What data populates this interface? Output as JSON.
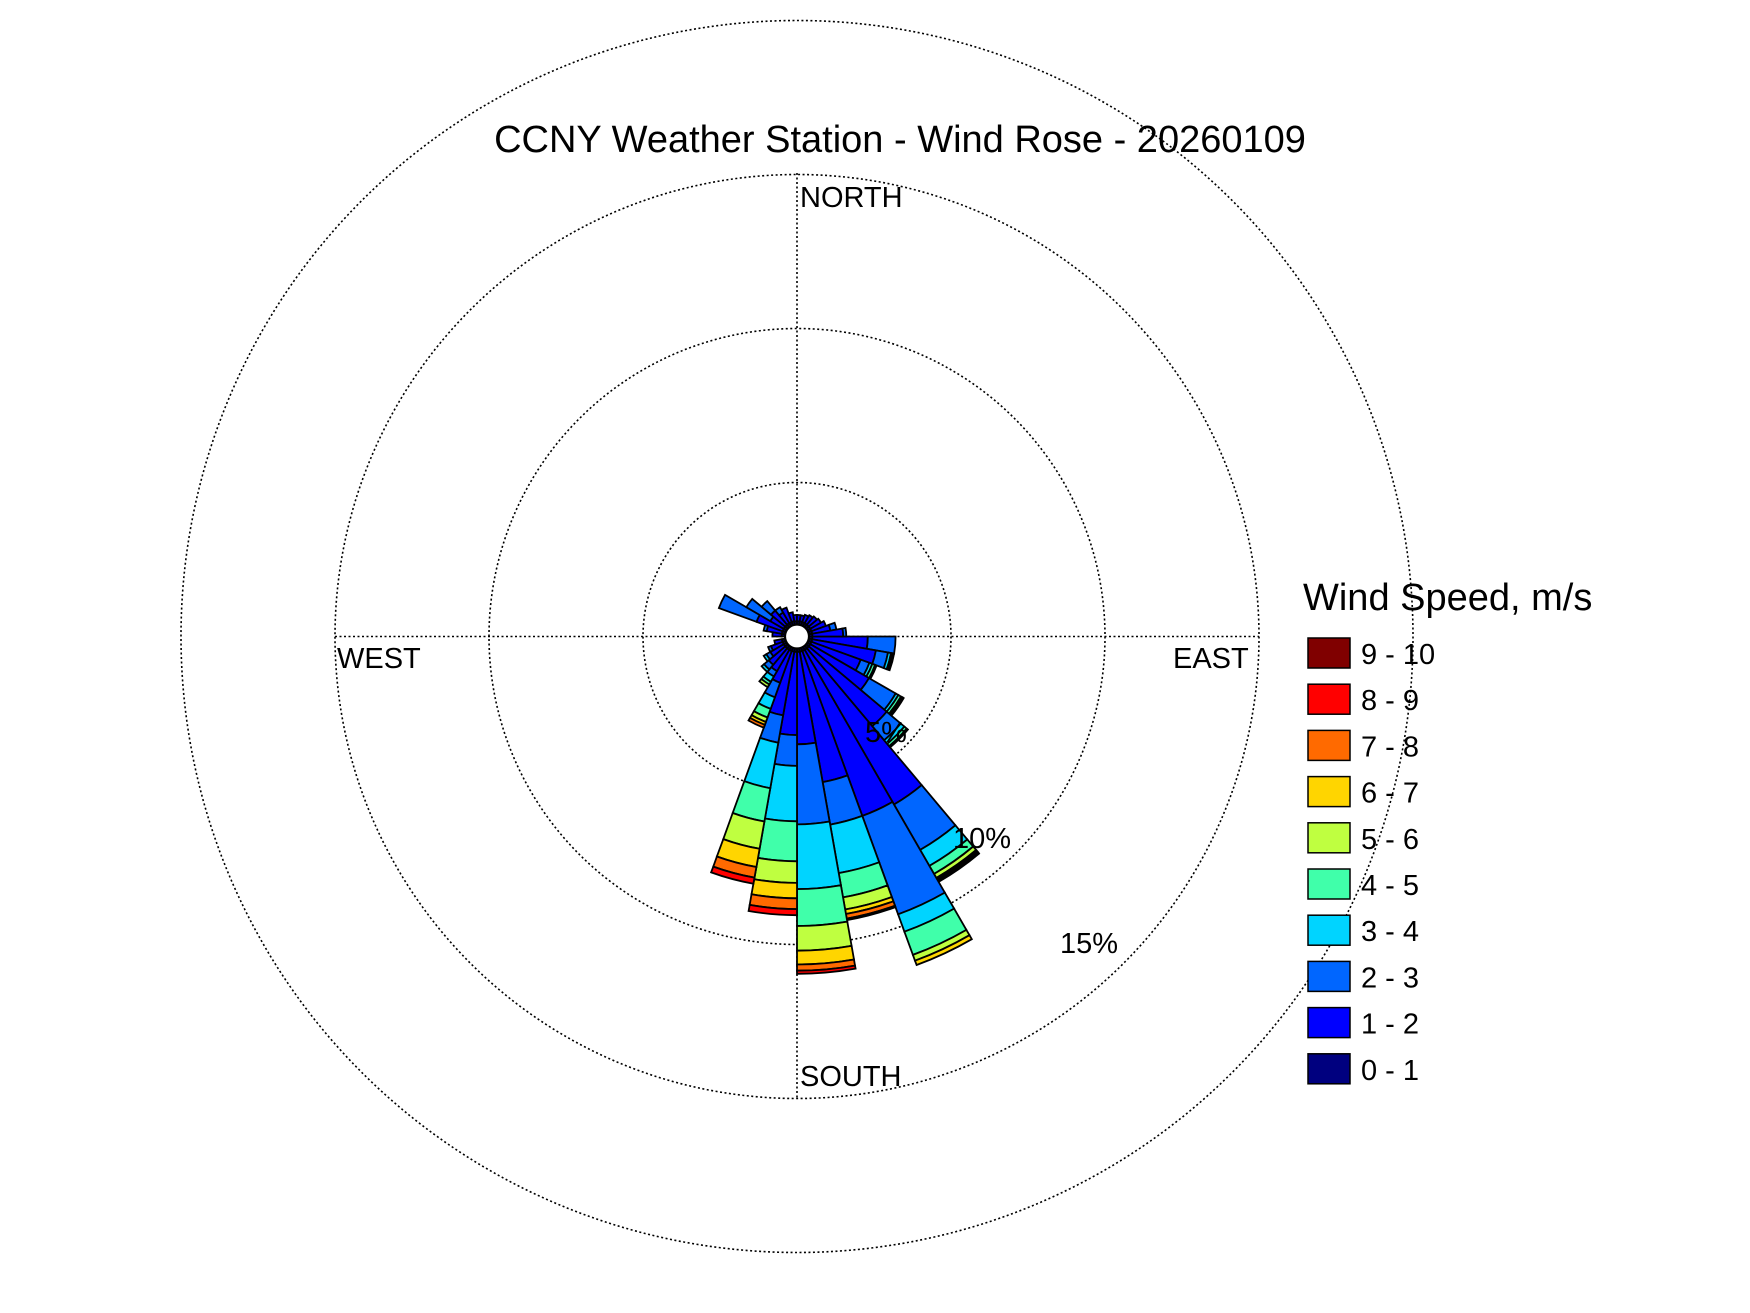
{
  "chart_data": {
    "type": "wind-rose",
    "title": "CCNY Weather Station - Wind Rose - 20260109",
    "directions": {
      "north": "NORTH",
      "south": "SOUTH",
      "east": "EAST",
      "west": "WEST"
    },
    "ring_labels": [
      "5%",
      "10%",
      "15%"
    ],
    "rings_percent": [
      5,
      10,
      15
    ],
    "grid": "dotted",
    "legend": {
      "title": "Wind Speed, m/s",
      "placement": "right",
      "bins": [
        {
          "label": "9 - 10",
          "color": "#800000"
        },
        {
          "label": "8 - 9",
          "color": "#ff0000"
        },
        {
          "label": "7 - 8",
          "color": "#ff6a00"
        },
        {
          "label": "6 - 7",
          "color": "#ffd500"
        },
        {
          "label": "5 - 6",
          "color": "#bfff40"
        },
        {
          "label": "4 - 5",
          "color": "#40ffaa"
        },
        {
          "label": "3 - 4",
          "color": "#00d4ff"
        },
        {
          "label": "2 - 3",
          "color": "#0066ff"
        },
        {
          "label": "1 - 2",
          "color": "#0000ff"
        },
        {
          "label": "0 - 1",
          "color": "#00007f"
        }
      ]
    },
    "speed_bins_ascending": [
      "0 - 1",
      "1 - 2",
      "2 - 3",
      "3 - 4",
      "4 - 5",
      "5 - 6",
      "6 - 7",
      "7 - 8",
      "8 - 9",
      "9 - 10"
    ],
    "sectors": [
      {
        "dir": 95,
        "cumulative_percent": [
          0.5,
          2.3,
          3.2
        ]
      },
      {
        "dir": 105,
        "cumulative_percent": [
          0.5,
          2.6,
          3.0,
          3.1,
          3.15,
          3.2
        ]
      },
      {
        "dir": 115,
        "cumulative_percent": [
          0.5,
          2.2,
          2.5,
          2.6,
          2.7,
          2.75
        ]
      },
      {
        "dir": 125,
        "cumulative_percent": [
          0.5,
          2.7,
          3.7,
          3.8,
          3.9,
          3.95,
          4.0
        ]
      },
      {
        "dir": 135,
        "cumulative_percent": [
          0.5,
          3.8,
          4.4,
          4.55,
          4.65,
          4.7
        ]
      },
      {
        "dir": 145,
        "cumulative_percent": [
          0.5,
          6.3,
          8.0,
          8.6,
          8.9,
          9.05,
          9.1,
          9.15,
          9.2
        ]
      },
      {
        "dir": 155,
        "cumulative_percent": [
          0.5,
          6.2,
          9.6,
          10.2,
          11.0,
          11.2,
          11.35
        ]
      },
      {
        "dir": 165,
        "cumulative_percent": [
          0.5,
          4.8,
          6.2,
          7.8,
          8.6,
          9.0,
          9.15,
          9.3,
          9.35
        ]
      },
      {
        "dir": 175,
        "cumulative_percent": [
          0.5,
          3.5,
          6.1,
          8.2,
          9.4,
          10.2,
          10.65,
          10.85,
          10.95
        ]
      },
      {
        "dir": 185,
        "cumulative_percent": [
          0.5,
          3.2,
          4.2,
          6.0,
          7.3,
          8.0,
          8.5,
          8.85,
          9.05
        ]
      },
      {
        "dir": 195,
        "cumulative_percent": [
          0.5,
          2.6,
          3.5,
          5.0,
          6.1,
          7.0,
          7.6,
          7.95,
          8.15
        ]
      },
      {
        "dir": 205,
        "cumulative_percent": [
          0.5,
          1.6,
          2.1,
          2.5,
          2.8,
          2.95,
          3.05,
          3.15
        ]
      },
      {
        "dir": 215,
        "cumulative_percent": [
          0.5,
          1.3,
          1.5,
          1.7,
          1.8,
          1.9
        ]
      },
      {
        "dir": 225,
        "cumulative_percent": [
          0.5,
          1.2,
          1.4,
          1.5
        ]
      },
      {
        "dir": 235,
        "cumulative_percent": [
          0.5,
          1.0,
          1.15,
          1.25
        ]
      },
      {
        "dir": 245,
        "cumulative_percent": [
          0.5,
          0.9,
          1.0
        ]
      },
      {
        "dir": 255,
        "cumulative_percent": [
          0.5,
          0.75
        ]
      },
      {
        "dir": 275,
        "cumulative_percent": [
          0.5,
          0.8
        ]
      },
      {
        "dir": 285,
        "cumulative_percent": [
          0.5,
          1.0,
          1.1
        ]
      },
      {
        "dir": 295,
        "cumulative_percent": [
          0.5,
          1.4,
          2.7
        ]
      },
      {
        "dir": 305,
        "cumulative_percent": [
          0.5,
          1.0,
          1.9
        ]
      },
      {
        "dir": 315,
        "cumulative_percent": [
          0.5,
          1.1,
          1.5
        ]
      },
      {
        "dir": 325,
        "cumulative_percent": [
          0.5,
          0.9,
          1.1
        ]
      },
      {
        "dir": 335,
        "cumulative_percent": [
          0.5,
          1.0
        ]
      },
      {
        "dir": 345,
        "cumulative_percent": [
          0.5,
          0.8
        ]
      },
      {
        "dir": 355,
        "cumulative_percent": [
          0.5,
          0.7
        ]
      },
      {
        "dir": 5,
        "cumulative_percent": [
          0.5,
          0.7
        ]
      },
      {
        "dir": 15,
        "cumulative_percent": [
          0.5,
          0.7
        ]
      },
      {
        "dir": 25,
        "cumulative_percent": [
          0.5,
          0.75
        ]
      },
      {
        "dir": 35,
        "cumulative_percent": [
          0.5,
          0.8
        ]
      },
      {
        "dir": 45,
        "cumulative_percent": [
          0.5,
          0.85
        ]
      },
      {
        "dir": 55,
        "cumulative_percent": [
          0.5,
          0.9
        ]
      },
      {
        "dir": 65,
        "cumulative_percent": [
          0.5,
          1.0
        ]
      },
      {
        "dir": 75,
        "cumulative_percent": [
          0.5,
          1.1,
          1.3
        ]
      },
      {
        "dir": 85,
        "cumulative_percent": [
          0.5,
          1.5,
          1.6
        ]
      }
    ]
  }
}
